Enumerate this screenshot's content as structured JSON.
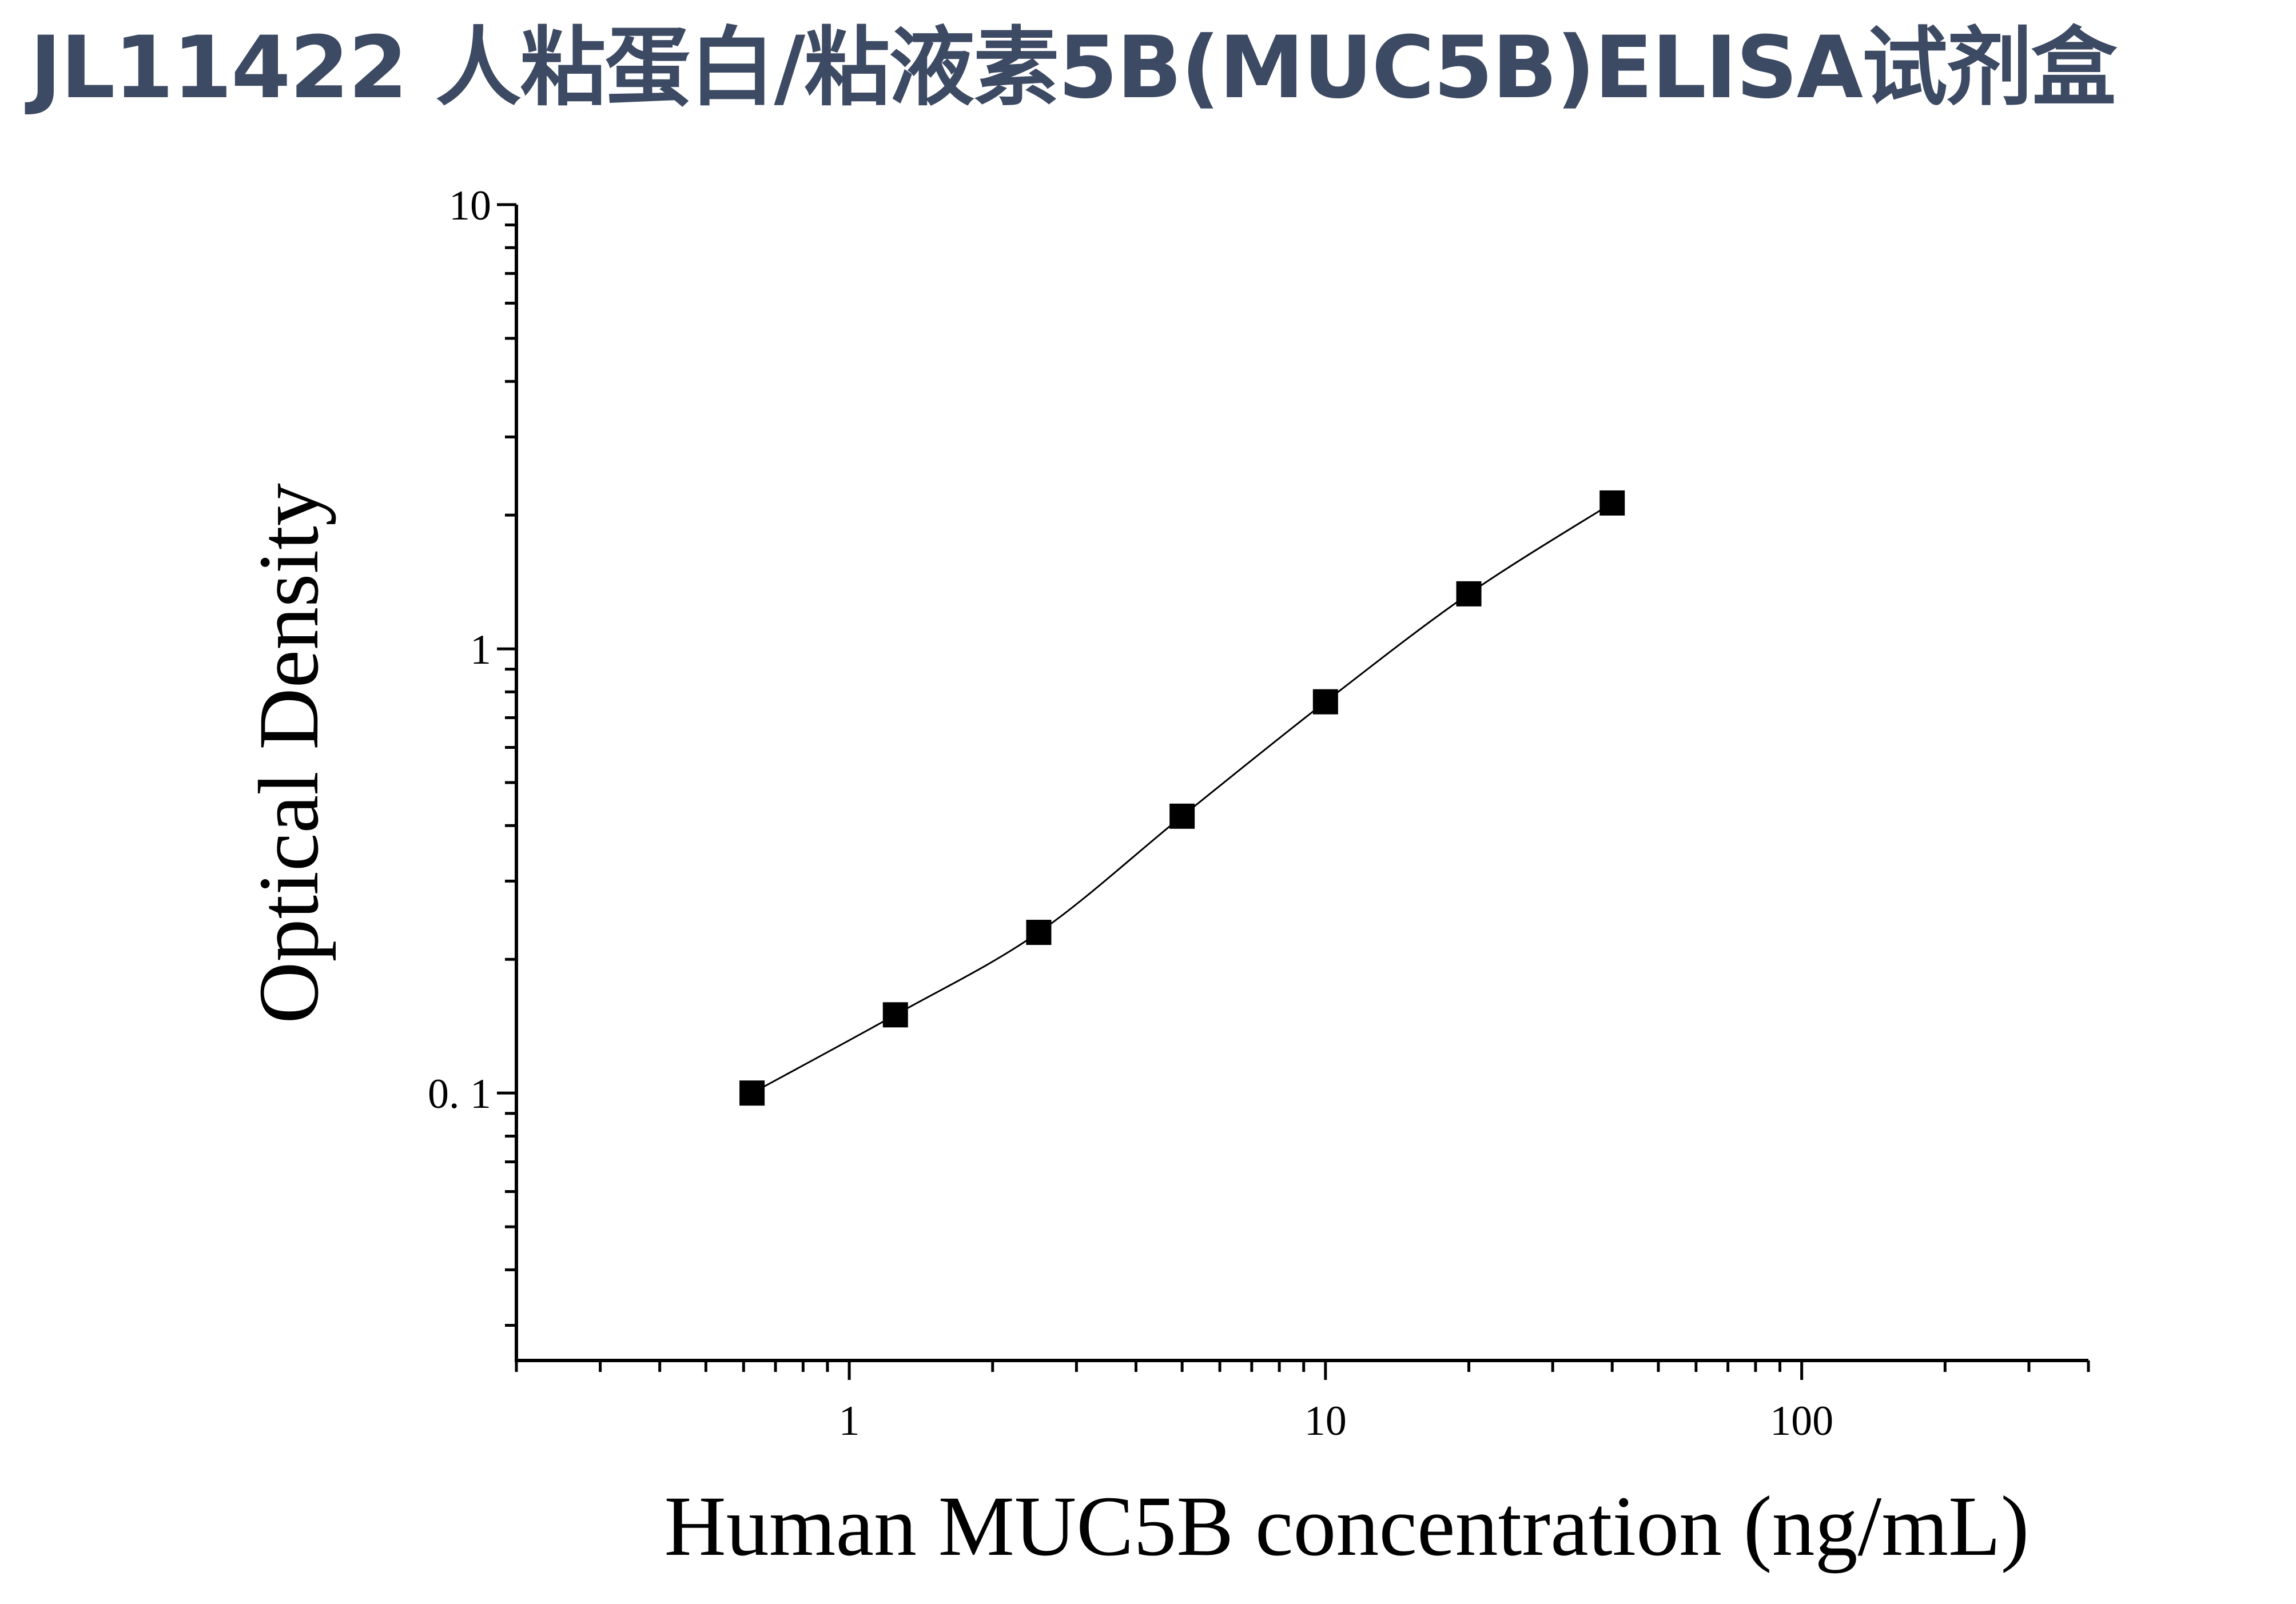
{
  "title": "JL11422 人粘蛋白/粘液素5B(MUC5B)ELISA试剂盒",
  "chart_data": {
    "type": "scatter",
    "xlabel": "Human MUC5B concentration (ng/mL)",
    "ylabel": "Optical Density",
    "x_scale": "log",
    "y_scale": "log",
    "xlim": [
      0.2,
      400
    ],
    "ylim": [
      0.025,
      10
    ],
    "x_ticks": [
      {
        "value": 1,
        "label": "1"
      },
      {
        "value": 10,
        "label": "10"
      },
      {
        "value": 100,
        "label": "100"
      }
    ],
    "y_ticks": [
      {
        "value": 0.1,
        "label": "0. 1"
      },
      {
        "value": 1,
        "label": "1"
      },
      {
        "value": 10,
        "label": "10"
      }
    ],
    "grid": false,
    "marker": "square",
    "fit_curve": true,
    "series": [
      {
        "x": [
          0.625,
          1.25,
          2.5,
          5,
          10,
          20,
          40
        ],
        "y": [
          0.1,
          0.15,
          0.23,
          0.42,
          0.76,
          1.33,
          2.13
        ]
      }
    ],
    "colors": {
      "marker": "#000000",
      "line": "#000000"
    }
  }
}
